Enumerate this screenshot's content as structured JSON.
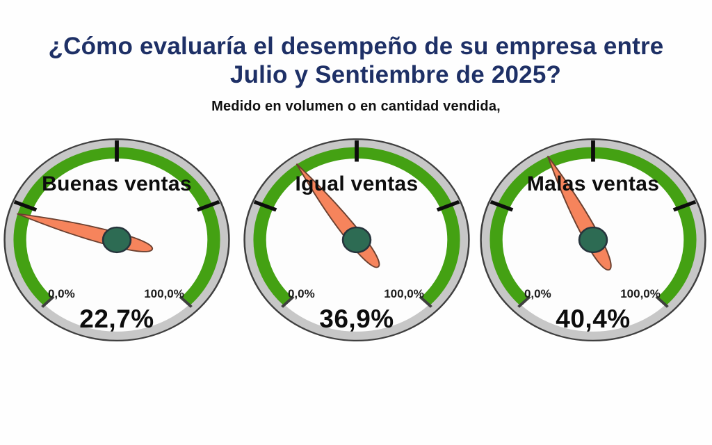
{
  "page": {
    "background": "#fefefe"
  },
  "chart_data": {
    "type": "gauge",
    "title": "¿Cómo evaluaría el desempeño de su empresa entre Julio y Sentiembre de 2025?",
    "title_lines": [
      "¿Cómo evaluaría el desempeño de su empresa entre",
      "Julio y Sentiembre de 2025?"
    ],
    "subtitle": "Medido en volumen o en cantidad vendida,",
    "unit": "%",
    "scale": {
      "min": 0,
      "max": 100,
      "min_label": "0,0%",
      "max_label": "100,0%",
      "start_angle_deg": 225,
      "end_angle_deg": -45,
      "sweep_deg": 270
    },
    "ticks_pct": [
      25,
      50,
      75
    ],
    "gauges": [
      {
        "label": "Buenas ventas",
        "value": 22.7,
        "value_label": "22,7%"
      },
      {
        "label": "Igual ventas",
        "value": 36.9,
        "value_label": "36,9%"
      },
      {
        "label": "Malas ventas",
        "value": 40.4,
        "value_label": "40,4%"
      }
    ],
    "legend": "none",
    "colors": {
      "title_navy": "#1e3066",
      "arc_green": "#44a113",
      "rim_gray": "#c7c7c7",
      "outline_dark": "#3f3f3f",
      "needle_salmon": "#f6845c",
      "needle_outline": "#6b4030",
      "hub_teal_green": "#2d6b53",
      "hub_outline": "#26343c",
      "dial_face": "#fdfdfd",
      "tick_black": "#0d0d0d",
      "text_black": "#0d0d0d",
      "background": "#fefefe"
    }
  }
}
